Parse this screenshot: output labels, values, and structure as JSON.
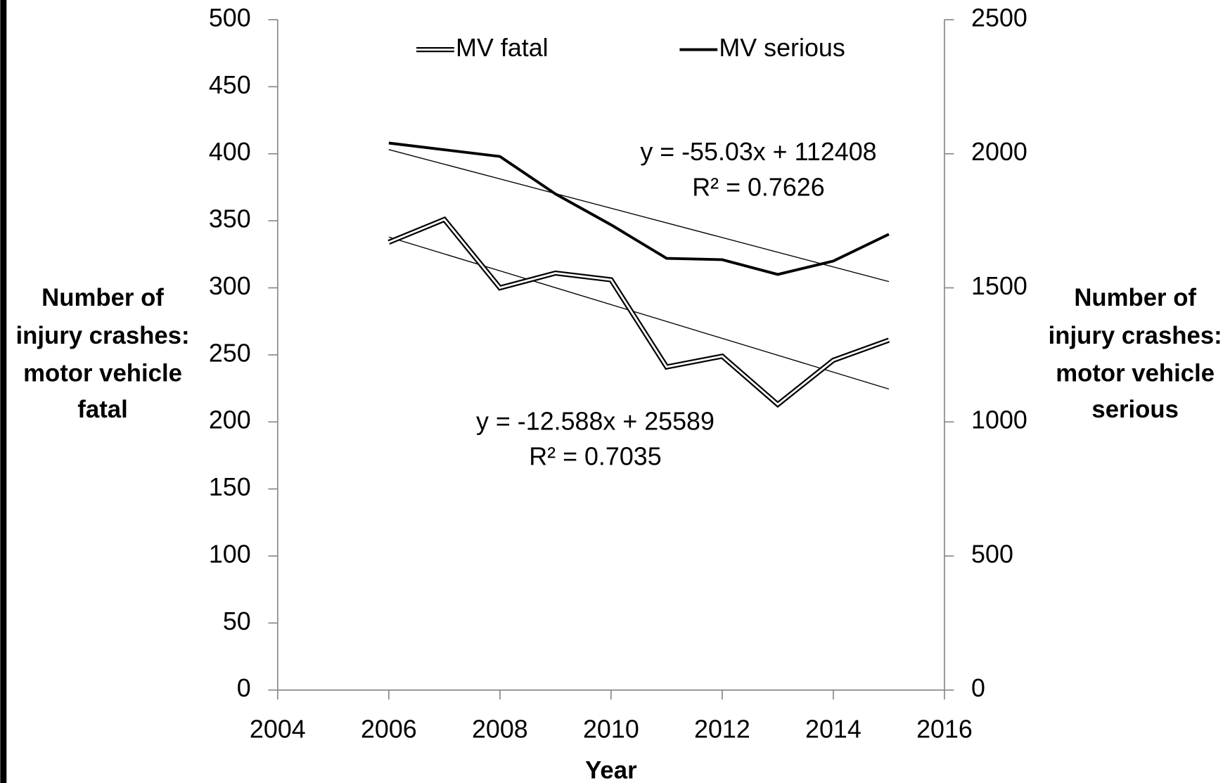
{
  "chart_data": {
    "type": "line",
    "xlabel": "Year",
    "ylabel": [
      "Number of",
      "injury crashes:",
      "motor vehicle",
      "fatal"
    ],
    "y2label": [
      "Number of",
      "injury crashes:",
      "motor vehicle",
      "serious"
    ],
    "x": [
      2006,
      2007,
      2008,
      2009,
      2010,
      2011,
      2012,
      2013,
      2014,
      2015
    ],
    "series": [
      {
        "name": "MV fatal",
        "color": "#000000",
        "style": "double",
        "trendline": true,
        "values": [
          334,
          351,
          300,
          311,
          306,
          241,
          249,
          213,
          246,
          261
        ]
      },
      {
        "name": "MV serious",
        "color": "#000000",
        "style": "solid",
        "axis": "y2",
        "trendline": true,
        "values": [
          2040,
          2015,
          1990,
          1850,
          1735,
          1610,
          1605,
          1550,
          1600,
          1700
        ]
      }
    ],
    "annotations": [
      "y = -55.03x + 112408",
      "R² = 0.7626",
      "y = -12.588x + 25589",
      "R² = 0.7035"
    ],
    "xlim": [
      2004,
      2016
    ],
    "xticks": [
      2004,
      2006,
      2008,
      2010,
      2012,
      2014,
      2016
    ],
    "ylim": [
      0,
      500
    ],
    "yticks": [
      0,
      50,
      100,
      150,
      200,
      250,
      300,
      350,
      400,
      450,
      500
    ],
    "y2lim": [
      0,
      2500
    ],
    "y2ticks": [
      0,
      500,
      1000,
      1500,
      2000,
      2500
    ],
    "legend": "top",
    "grid": false
  }
}
